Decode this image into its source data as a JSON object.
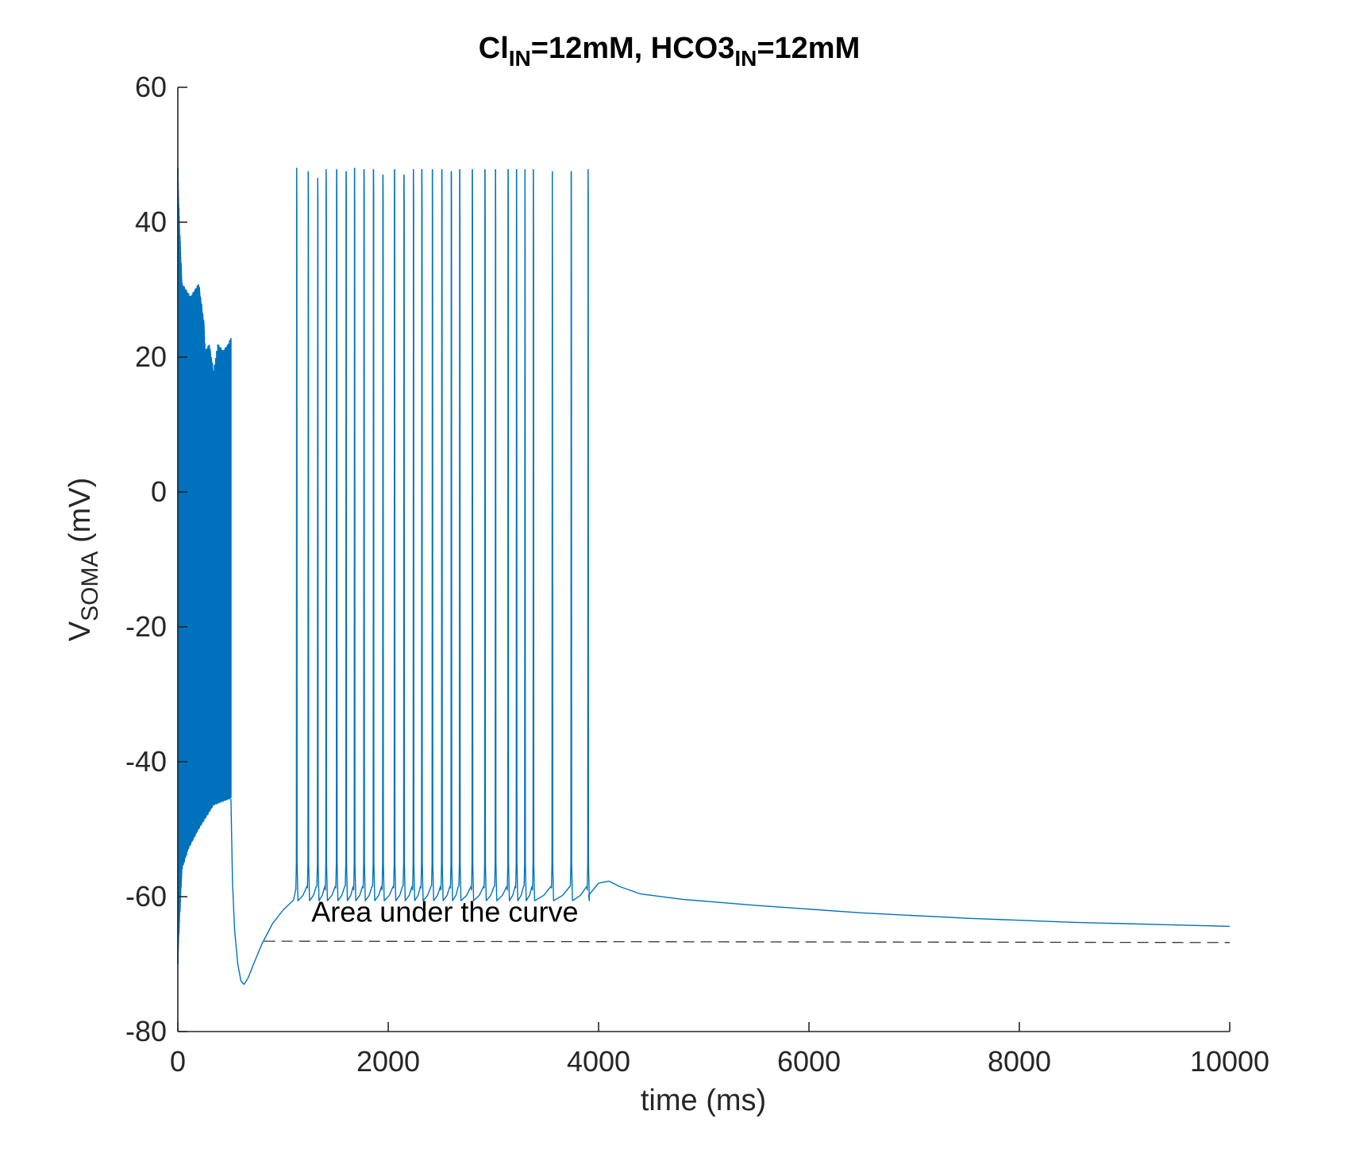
{
  "chart_data": {
    "type": "line",
    "title": {
      "part1": "Cl",
      "part1_sub": "IN",
      "part2": "=12mM, HCO3",
      "part2_sub": "IN",
      "part3": "=12mM"
    },
    "xlabel": "time (ms)",
    "ylabel": {
      "main": "V",
      "sub": "SOMA",
      "unit": " (mV)"
    },
    "xlim": [
      0,
      10000
    ],
    "ylim": [
      -80,
      60
    ],
    "xticks": [
      0,
      2000,
      4000,
      6000,
      8000,
      10000
    ],
    "xtick_labels": [
      "0",
      "2000",
      "4000",
      "6000",
      "8000",
      "10000"
    ],
    "yticks": [
      60,
      40,
      20,
      0,
      -20,
      -40,
      -60,
      -80
    ],
    "ytick_labels": [
      "60",
      "40",
      "20",
      "0",
      "-20",
      "-40",
      "-60",
      "-80"
    ],
    "grid": false,
    "series_color": "#0072BD",
    "reference_color": "#333333",
    "annotation": {
      "text": "Area under the curve",
      "x": 1270,
      "y": -63.7
    },
    "reference_line": {
      "style": "dashed",
      "x": [
        820,
        10000
      ],
      "y": [
        -66.6,
        -66.8
      ]
    },
    "initial_transient": {
      "x_start": 0,
      "x_end": 505,
      "peak": 48,
      "upper_envelope": [
        [
          0,
          48
        ],
        [
          15,
          40
        ],
        [
          40,
          31
        ],
        [
          120,
          29
        ],
        [
          200,
          31
        ],
        [
          250,
          25
        ],
        [
          260,
          21
        ],
        [
          300,
          22
        ],
        [
          340,
          18
        ],
        [
          380,
          22
        ],
        [
          430,
          21
        ],
        [
          480,
          22
        ],
        [
          505,
          23
        ]
      ],
      "lower_envelope": [
        [
          0,
          -70
        ],
        [
          15,
          -64
        ],
        [
          40,
          -56
        ],
        [
          100,
          -53
        ],
        [
          200,
          -50
        ],
        [
          280,
          -48
        ],
        [
          340,
          -46.5
        ],
        [
          420,
          -46
        ],
        [
          505,
          -45.5
        ]
      ]
    },
    "recovery": [
      [
        505,
        -45.5
      ],
      [
        520,
        -58
      ],
      [
        540,
        -65
      ],
      [
        570,
        -70
      ],
      [
        600,
        -72.5
      ],
      [
        630,
        -73
      ],
      [
        670,
        -72
      ],
      [
        720,
        -70
      ],
      [
        800,
        -67
      ],
      [
        900,
        -64
      ],
      [
        1000,
        -62
      ],
      [
        1100,
        -60.5
      ],
      [
        1120,
        -59
      ]
    ],
    "spike_times": [
      1130,
      1240,
      1330,
      1410,
      1510,
      1600,
      1680,
      1770,
      1860,
      1950,
      2060,
      2150,
      2240,
      2320,
      2420,
      2510,
      2600,
      2680,
      2800,
      2920,
      3020,
      3140,
      3220,
      3300,
      3380,
      3560,
      3740,
      3900
    ],
    "spike_peaks": [
      48,
      47.5,
      46.5,
      47.8,
      47.8,
      47.5,
      48,
      47.8,
      47.8,
      47,
      47.8,
      47,
      47.8,
      47.8,
      47.8,
      47.8,
      47.5,
      47.8,
      47.8,
      47.8,
      47.8,
      47.8,
      47.8,
      47.8,
      47.8,
      47.5,
      47.5,
      47.8
    ],
    "spike_afterpeaks": [
      41.5,
      43.5,
      43,
      43,
      43,
      43,
      43,
      43,
      43,
      43,
      42.5,
      42.5,
      42,
      42,
      41.5,
      41.5,
      41,
      40,
      40,
      40,
      40,
      39.5,
      39,
      37.5,
      35,
      33.5,
      32,
      44
    ],
    "tail": [
      [
        3900,
        -59
      ],
      [
        4000,
        -58
      ],
      [
        4100,
        -57.7
      ],
      [
        4200,
        -58.5
      ],
      [
        4400,
        -59.6
      ],
      [
        4800,
        -60.4
      ],
      [
        5500,
        -61.3
      ],
      [
        6500,
        -62.4
      ],
      [
        7500,
        -63.2
      ],
      [
        8500,
        -63.8
      ],
      [
        9500,
        -64.2
      ],
      [
        10000,
        -64.4
      ]
    ]
  }
}
